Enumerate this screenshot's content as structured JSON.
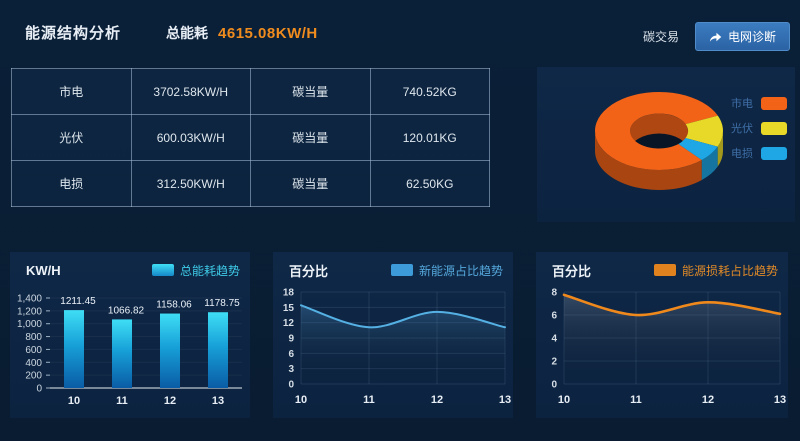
{
  "header": {
    "title": "能源结构分析",
    "total_label": "总能耗",
    "total_value": "4615.08KW/H",
    "carbon_link": "碳交易",
    "diagnose_button": "电网诊断"
  },
  "table": {
    "rows": [
      [
        "市电",
        "3702.58KW/H",
        "碳当量",
        "740.52KG"
      ],
      [
        "光伏",
        "600.03KW/H",
        "碳当量",
        "120.01KG"
      ],
      [
        "电损",
        "312.50KW/H",
        "碳当量",
        "62.50KG"
      ]
    ]
  },
  "chart_data": [
    {
      "type": "pie",
      "variant": "3d-donut",
      "labels": [
        "市电",
        "光伏",
        "电损"
      ],
      "values": [
        3702.58,
        600.03,
        312.5
      ],
      "percents": [
        80.2,
        13.0,
        6.8
      ],
      "colors": [
        "#f26317",
        "#e8d928",
        "#1ea7e4"
      ],
      "legend_position": "right"
    },
    {
      "type": "bar",
      "unit": "KW/H",
      "legend": "总能耗趋势",
      "categories": [
        "10",
        "11",
        "12",
        "13"
      ],
      "values": [
        1211.45,
        1066.82,
        1158.06,
        1178.75
      ],
      "ylim": [
        0,
        1400
      ],
      "ytick_labels": [
        "0",
        "200",
        "400",
        "600",
        "800",
        "1,000",
        "1,200",
        "1,400"
      ],
      "bar_color_top": "#3fdef5",
      "bar_color_bottom": "#0a5ca5",
      "grid": true
    },
    {
      "type": "line",
      "unit": "百分比",
      "legend": "新能源占比趋势",
      "x": [
        10,
        11,
        12,
        13
      ],
      "values": [
        15.4,
        11.1,
        14.1,
        11.1
      ],
      "ylim": [
        0,
        18
      ],
      "ytick_labels": [
        "0",
        "3",
        "6",
        "9",
        "12",
        "15",
        "18"
      ],
      "color": "#55b1e4",
      "fill_top": "rgba(86,160,215,0.30)",
      "grid": true
    },
    {
      "type": "line",
      "unit": "百分比",
      "legend": "能源损耗占比趋势",
      "x": [
        10,
        11,
        12,
        13
      ],
      "values": [
        7.75,
        6.0,
        7.1,
        6.1
      ],
      "ylim": [
        0,
        8
      ],
      "ytick_labels": [
        "0",
        "2",
        "4",
        "6",
        "8"
      ],
      "color": "#f0891c",
      "fill_top": "rgba(150,160,180,0.28)",
      "grid": true
    }
  ]
}
